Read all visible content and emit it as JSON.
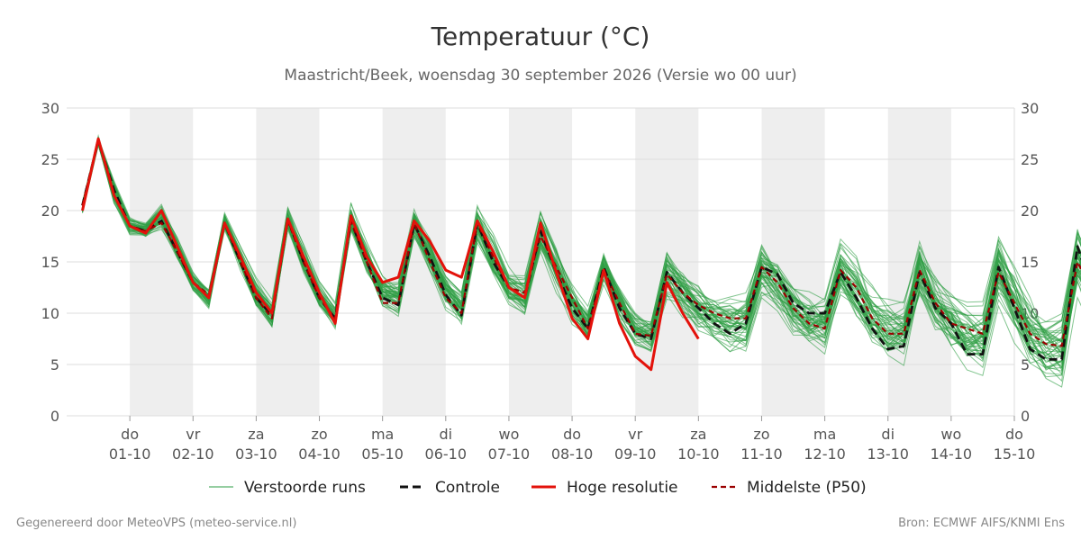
{
  "chart_data": {
    "type": "line",
    "title": "Temperatuur (°C)",
    "subtitle": "Maastricht/Beek, woensdag 30 september 2026 (Versie wo 00 uur)",
    "ylim": [
      0,
      30
    ],
    "yticks": [
      0,
      5,
      10,
      15,
      20,
      25,
      30
    ],
    "grid": true,
    "legend_position": "bottom",
    "x_step_days": 0.25,
    "day_ticks": [
      {
        "day": "do",
        "date": "01-10",
        "x": 1
      },
      {
        "day": "vr",
        "date": "02-10",
        "x": 2
      },
      {
        "day": "za",
        "date": "03-10",
        "x": 3
      },
      {
        "day": "zo",
        "date": "04-10",
        "x": 4
      },
      {
        "day": "ma",
        "date": "05-10",
        "x": 5
      },
      {
        "day": "di",
        "date": "06-10",
        "x": 6
      },
      {
        "day": "wo",
        "date": "07-10",
        "x": 7
      },
      {
        "day": "do",
        "date": "08-10",
        "x": 8
      },
      {
        "day": "vr",
        "date": "09-10",
        "x": 9
      },
      {
        "day": "za",
        "date": "10-10",
        "x": 10
      },
      {
        "day": "zo",
        "date": "11-10",
        "x": 11
      },
      {
        "day": "ma",
        "date": "12-10",
        "x": 12
      },
      {
        "day": "di",
        "date": "13-10",
        "x": 13
      },
      {
        "day": "wo",
        "date": "14-10",
        "x": 14
      },
      {
        "day": "do",
        "date": "15-10",
        "x": 15
      }
    ],
    "shaded_days": [
      {
        "x": 1
      },
      {
        "x": 3
      },
      {
        "x": 5
      },
      {
        "x": 7
      },
      {
        "x": 9
      },
      {
        "x": 11
      },
      {
        "x": 13
      }
    ],
    "series": [
      {
        "name": "Controle",
        "style": "black-dashed",
        "color": "#111111",
        "x_start": 0.25,
        "values": [
          20.5,
          26.8,
          22.0,
          18.5,
          18.0,
          19.0,
          16.0,
          13.0,
          11.5,
          18.8,
          15.0,
          11.5,
          9.8,
          19.2,
          15.0,
          11.5,
          9.5,
          19.0,
          15.0,
          11.5,
          10.8,
          18.7,
          15.5,
          11.8,
          9.8,
          18.8,
          15.0,
          12.5,
          11.5,
          18.0,
          14.0,
          10.5,
          8.5,
          14.5,
          10.5,
          8.0,
          7.5,
          14.0,
          12.0,
          10.5,
          9.0,
          8.0,
          9.0,
          14.5,
          13.8,
          11.0,
          10.0,
          10.0,
          14.0,
          11.5,
          8.5,
          6.5,
          6.8,
          14.0,
          10.5,
          9.0,
          6.0,
          6.0,
          14.5,
          10.5,
          6.5,
          5.5,
          5.5,
          16.5,
          12.0,
          9.0,
          8.0
        ]
      },
      {
        "name": "Hoge resolutie",
        "style": "red-solid",
        "color": "#e3120b",
        "x_start": 0.25,
        "values": [
          20.0,
          27.0,
          21.5,
          18.5,
          17.8,
          20.0,
          16.5,
          13.0,
          11.5,
          18.8,
          15.5,
          12.0,
          10.0,
          19.2,
          15.5,
          12.0,
          9.0,
          19.5,
          15.5,
          13.0,
          13.5,
          19.0,
          17.0,
          14.2,
          13.5,
          19.0,
          16.0,
          12.5,
          11.5,
          18.8,
          14.0,
          9.5,
          7.5,
          14.2,
          9.0,
          5.8,
          4.5,
          13.0,
          10.0,
          7.5
        ]
      },
      {
        "name": "Middelste (P50)",
        "style": "darkred-dashed",
        "color": "#9b0000",
        "x_start": 0.25,
        "values": [
          20.5,
          26.8,
          21.5,
          18.5,
          18.0,
          18.8,
          16.0,
          13.0,
          11.8,
          18.8,
          15.0,
          11.5,
          9.5,
          19.0,
          15.0,
          11.5,
          9.5,
          19.0,
          15.0,
          11.0,
          11.0,
          18.8,
          15.0,
          11.5,
          10.0,
          18.8,
          15.5,
          12.5,
          12.0,
          17.5,
          14.5,
          11.5,
          8.5,
          14.2,
          11.0,
          8.0,
          7.8,
          13.8,
          12.0,
          10.8,
          10.0,
          9.5,
          9.5,
          14.5,
          13.0,
          10.5,
          9.0,
          8.5,
          14.2,
          12.5,
          9.5,
          8.0,
          8.0,
          14.2,
          11.0,
          9.0,
          8.5,
          8.0,
          14.0,
          11.0,
          8.0,
          7.0,
          6.8,
          15.0,
          12.0,
          9.5,
          8.5
        ]
      }
    ],
    "ensemble": {
      "name": "Verstoorde runs",
      "color": "#2e9e44",
      "member_count": 50,
      "x_start": 0.25,
      "mean": [
        20.3,
        26.8,
        21.8,
        18.5,
        18.0,
        19.2,
        16.2,
        13.0,
        11.5,
        18.8,
        15.2,
        11.8,
        9.8,
        19.0,
        15.2,
        11.7,
        9.6,
        19.1,
        15.3,
        12.0,
        11.5,
        18.8,
        15.5,
        12.3,
        10.6,
        18.8,
        15.5,
        12.6,
        11.7,
        18.0,
        14.5,
        10.8,
        8.7,
        14.4,
        10.8,
        8.4,
        7.8,
        14.0,
        12.0,
        10.5,
        9.4,
        9.0,
        9.2,
        14.5,
        13.0,
        10.5,
        9.3,
        9.0,
        14.2,
        12.0,
        9.5,
        8.2,
        8.0,
        14.1,
        11.0,
        9.0,
        7.5,
        7.2,
        14.3,
        11.0,
        7.8,
        6.5,
        6.4,
        15.3,
        12.0,
        9.3,
        8.3
      ],
      "spread": [
        0.8,
        0.6,
        1.5,
        1.0,
        1.0,
        1.5,
        1.4,
        1.2,
        1.2,
        1.2,
        1.4,
        1.6,
        1.6,
        1.4,
        1.6,
        1.6,
        1.6,
        1.6,
        1.8,
        2.0,
        2.0,
        1.8,
        2.0,
        2.2,
        2.0,
        2.0,
        2.3,
        2.2,
        2.4,
        2.6,
        2.4,
        2.6,
        2.4,
        2.2,
        2.4,
        2.2,
        2.2,
        2.8,
        2.8,
        2.8,
        2.8,
        3.0,
        3.0,
        3.0,
        3.0,
        3.0,
        3.0,
        3.2,
        3.0,
        3.2,
        3.2,
        3.4,
        3.6,
        3.6,
        3.4,
        3.4,
        3.6,
        3.6,
        3.8,
        3.8,
        3.8,
        3.8,
        3.8,
        3.6,
        3.6,
        3.6,
        3.6
      ]
    },
    "legend": [
      {
        "label": "Verstoorde runs",
        "style": "green-thin"
      },
      {
        "label": "Controle",
        "style": "black-dashed"
      },
      {
        "label": "Hoge resolutie",
        "style": "red-solid"
      },
      {
        "label": "Middelste (P50)",
        "style": "darkred-dashed"
      }
    ]
  },
  "footer": {
    "left": "Gegenereerd door MeteoVPS (meteo-service.nl)",
    "right": "Bron: ECMWF AIFS/KNMI Ens"
  },
  "colors": {
    "shade": "#eeeeee",
    "grid": "#dddddd",
    "ensemble": "#2e9e44",
    "control": "#111111",
    "hires": "#e3120b",
    "p50": "#9b0000"
  }
}
